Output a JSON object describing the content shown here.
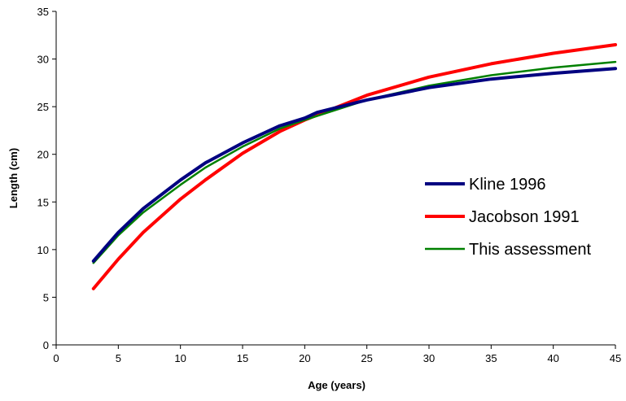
{
  "chart_data": {
    "type": "line",
    "title": "",
    "xlabel": "Age (years)",
    "ylabel": "Length (cm)",
    "xlim": [
      0,
      45
    ],
    "ylim": [
      0,
      35
    ],
    "xticks": [
      0,
      5,
      10,
      15,
      20,
      25,
      30,
      35,
      40,
      45
    ],
    "yticks": [
      0,
      5,
      10,
      15,
      20,
      25,
      30,
      35
    ],
    "grid": false,
    "legend_position": "right",
    "series": [
      {
        "name": "Kline 1996",
        "color": "#000080",
        "x": [
          3,
          5,
          7,
          10,
          12,
          15,
          18,
          20,
          21,
          25,
          30,
          35,
          40,
          45
        ],
        "y": [
          8.8,
          11.8,
          14.3,
          17.3,
          19.1,
          21.2,
          23.0,
          23.8,
          24.4,
          25.7,
          27.0,
          27.9,
          28.5,
          29.0
        ]
      },
      {
        "name": "Jacobson 1991",
        "color": "#ff0000",
        "x": [
          3,
          5,
          7,
          10,
          12,
          15,
          18,
          20,
          25,
          30,
          35,
          40,
          45
        ],
        "y": [
          5.9,
          9.0,
          11.8,
          15.3,
          17.3,
          20.1,
          22.4,
          23.6,
          26.2,
          28.1,
          29.5,
          30.6,
          31.5
        ]
      },
      {
        "name": "This assessment",
        "color": "#008000",
        "x": [
          3,
          5,
          7,
          10,
          12,
          15,
          18,
          20,
          25,
          30,
          35,
          40,
          45
        ],
        "y": [
          8.6,
          11.5,
          13.9,
          16.8,
          18.6,
          20.8,
          22.7,
          23.6,
          25.7,
          27.2,
          28.3,
          29.1,
          29.7
        ]
      }
    ]
  }
}
